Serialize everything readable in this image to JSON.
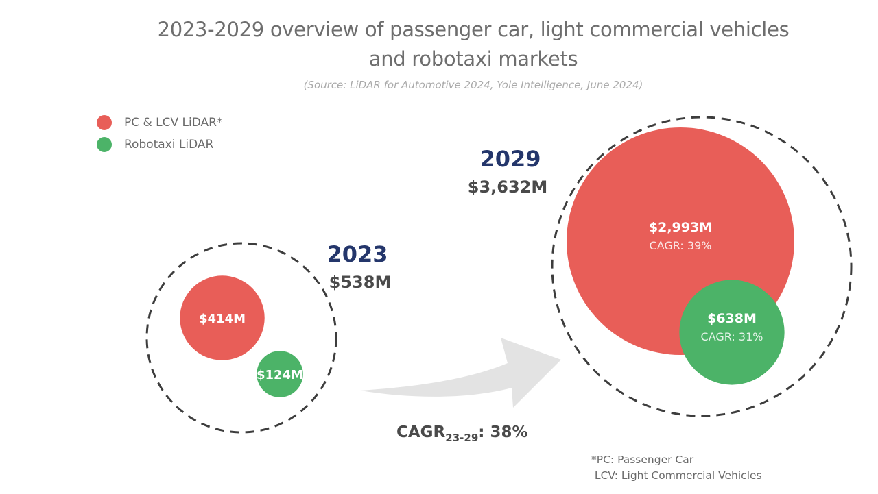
{
  "title_line1": "2023-2029 overview of passenger car, light commercial vehicles",
  "title_line2": "and robotaxi markets",
  "subtitle": "(Source: LiDAR for Automotive 2024, Yole Intelligence, June 2024)",
  "colors": {
    "pc_lcv": "#e85e58",
    "robotaxi": "#4cb368",
    "year": "#24366b",
    "arrow": "#e3e3e3",
    "dash": "#3d3d3d"
  },
  "legend": [
    {
      "label": "PC & LCV LiDAR*",
      "color": "#e85e58"
    },
    {
      "label": "Robotaxi LiDAR",
      "color": "#4cb368"
    }
  ],
  "footnote": {
    "line1": "*PC: Passenger Car",
    "line2": " LCV: Light Commercial Vehicles"
  },
  "chart_data": {
    "type": "bubble",
    "title": "2023-2029 overview of passenger car, light commercial vehicles and robotaxi markets",
    "subtitle": "(Source: LiDAR for Automotive 2024, Yole Intelligence, June 2024)",
    "unit": "$M",
    "series_names": [
      "PC & LCV LiDAR*",
      "Robotaxi LiDAR"
    ],
    "years": [
      {
        "year": "2023",
        "total": 538,
        "total_label": "$538M",
        "segments": [
          {
            "name": "PC & LCV LiDAR*",
            "value": 414,
            "label": "$414M",
            "cagr_label": ""
          },
          {
            "name": "Robotaxi LiDAR",
            "value": 124,
            "label": "$124M",
            "cagr_label": ""
          }
        ]
      },
      {
        "year": "2029",
        "total": 3632,
        "total_label": "$3,632M",
        "segments": [
          {
            "name": "PC & LCV LiDAR*",
            "value": 2993,
            "label": "$2,993M",
            "cagr_label": "CAGR: 39%"
          },
          {
            "name": "Robotaxi LiDAR",
            "value": 638,
            "label": "$638M",
            "cagr_label": "CAGR: 31%"
          }
        ]
      }
    ],
    "overall_cagr": {
      "prefix": "CAGR",
      "subscript": "23-29",
      "suffix": ": 38%",
      "value_percent": 38
    }
  }
}
